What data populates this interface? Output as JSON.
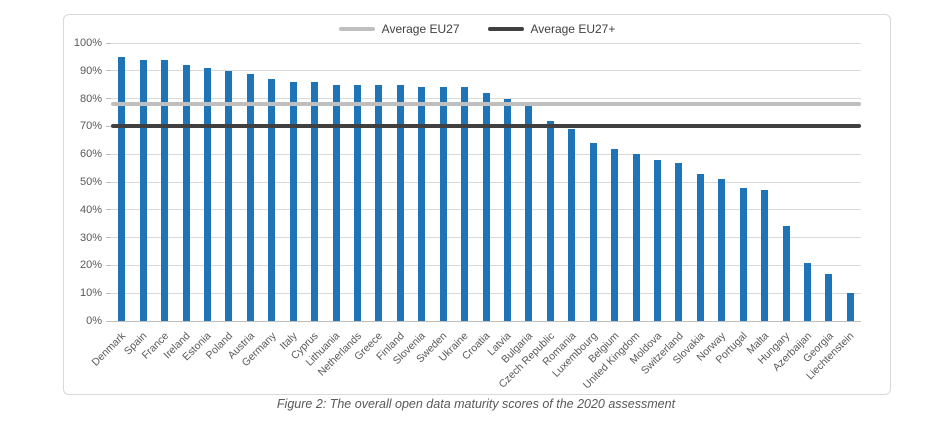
{
  "caption": "Figure 2: The overall open data maturity scores of the 2020 assessment",
  "chart_data": {
    "type": "bar",
    "title": "",
    "xlabel": "",
    "ylabel": "",
    "ylim": [
      0,
      100
    ],
    "grid": true,
    "legend_position": "top-center",
    "bar_color": "#1f73b7",
    "gridline_color": "#d9d9d9",
    "axis_text_color": "#595959",
    "y_ticks": [
      "0%",
      "10%",
      "20%",
      "30%",
      "40%",
      "50%",
      "60%",
      "70%",
      "80%",
      "90%",
      "100%"
    ],
    "categories": [
      "Denmark",
      "Spain",
      "France",
      "Ireland",
      "Estonia",
      "Poland",
      "Austria",
      "Germany",
      "Italy",
      "Cyprus",
      "Lithuania",
      "Netherlands",
      "Greece",
      "Finland",
      "Slovenia",
      "Sweden",
      "Ukraine",
      "Croatia",
      "Latvia",
      "Bulgaria",
      "Czech Republic",
      "Romania",
      "Luxembourg",
      "Belgium",
      "United Kingdom",
      "Moldova",
      "Switzerland",
      "Slovakia",
      "Norway",
      "Portugal",
      "Malta",
      "Hungary",
      "Azerbaijan",
      "Georgia",
      "Liechtenstein"
    ],
    "values": [
      95,
      94,
      94,
      92,
      91,
      90,
      89,
      87,
      86,
      86,
      85,
      85,
      85,
      85,
      84,
      84,
      84,
      82,
      80,
      78,
      72,
      69,
      64,
      62,
      60,
      58,
      57,
      53,
      51,
      48,
      47,
      34,
      21,
      17,
      10
    ],
    "reference_lines": [
      {
        "label": "Average EU27",
        "value": 78,
        "color": "#bfbfbf"
      },
      {
        "label": "Average EU27+",
        "value": 70,
        "color": "#404040"
      }
    ]
  }
}
